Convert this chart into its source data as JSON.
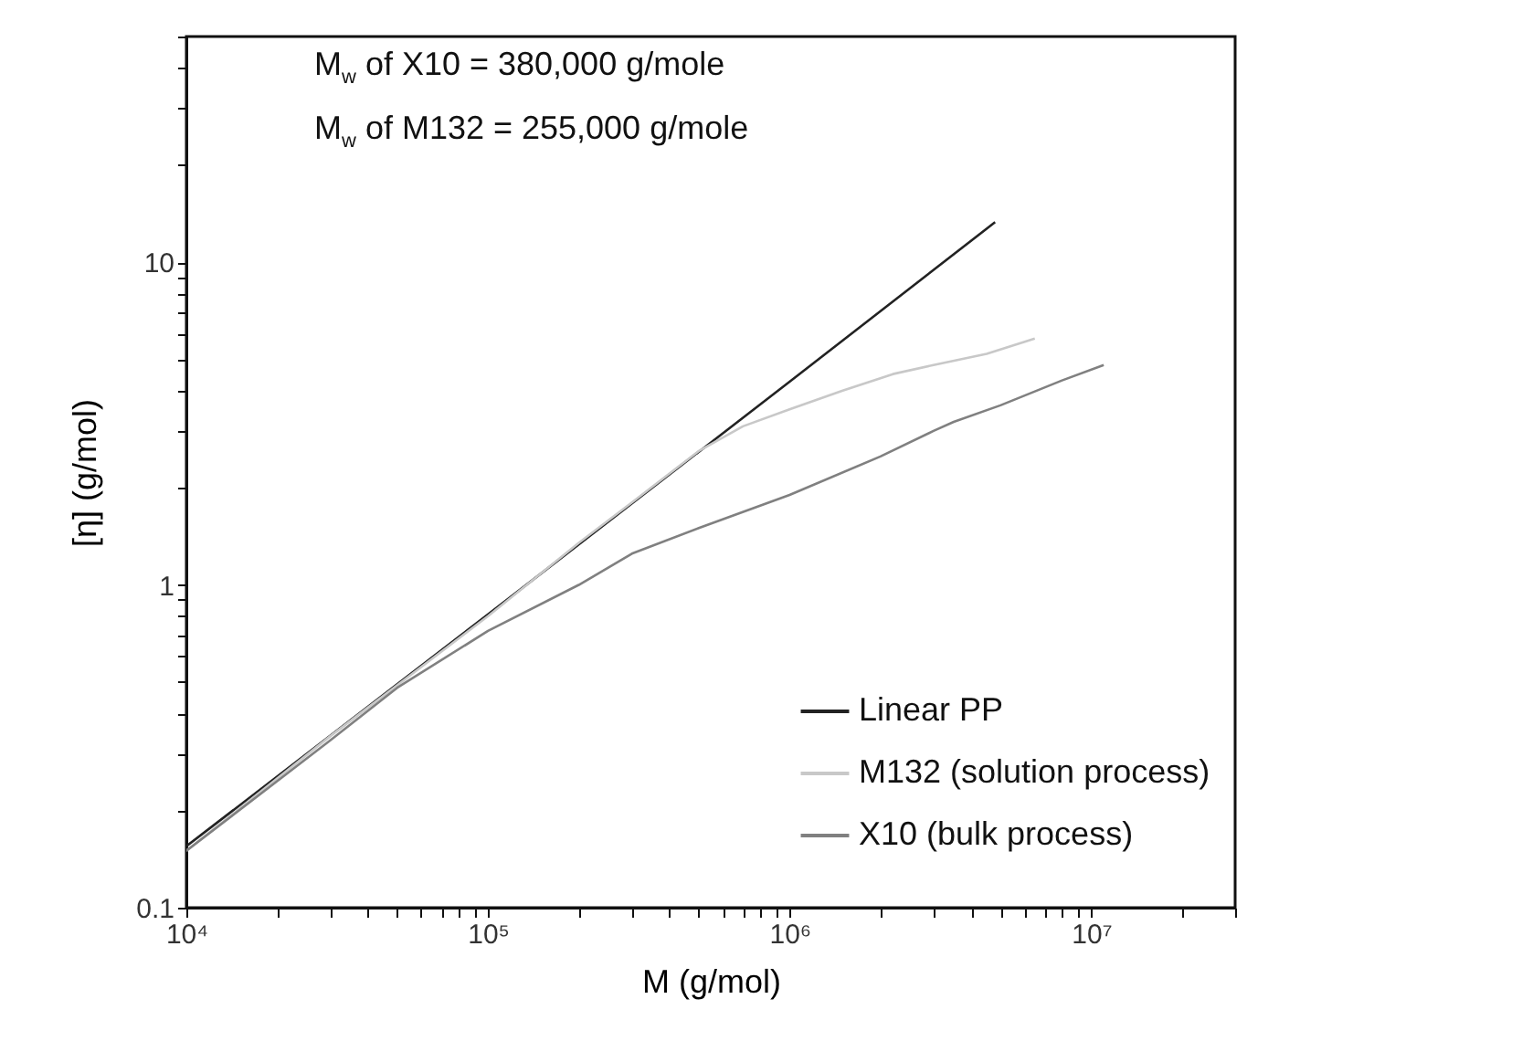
{
  "chart_data": {
    "type": "line",
    "xlabel": "M (g/mol)",
    "ylabel": "[η] (g/mol)",
    "annotations": [
      "M$_{w}$ of X10 = 380,000 g/mole",
      "M$_{w}$ of M132 = 255,000 g/mole"
    ],
    "log": "xy",
    "grid": false,
    "legend": "bottom right",
    "marker": "none",
    "line_style": "solid",
    "xlim": [
      10000,
      30000000
    ],
    "xticks": [
      {
        "value": 10000,
        "label": "10⁴"
      },
      {
        "value": 20000,
        "label": null
      },
      {
        "value": 30000,
        "label": null
      },
      {
        "value": 40000,
        "label": null
      },
      {
        "value": 50000,
        "label": null
      },
      {
        "value": 60000,
        "label": null
      },
      {
        "value": 70000,
        "label": null
      },
      {
        "value": 80000,
        "label": null
      },
      {
        "value": 90000,
        "label": null
      },
      {
        "value": 100000,
        "label": "10⁵"
      },
      {
        "value": 200000,
        "label": null
      },
      {
        "value": 300000,
        "label": null
      },
      {
        "value": 400000,
        "label": null
      },
      {
        "value": 500000,
        "label": null
      },
      {
        "value": 600000,
        "label": null
      },
      {
        "value": 700000,
        "label": null
      },
      {
        "value": 800000,
        "label": null
      },
      {
        "value": 900000,
        "label": null
      },
      {
        "value": 1000000,
        "label": "10⁶"
      },
      {
        "value": 2000000,
        "label": null
      },
      {
        "value": 3000000,
        "label": null
      },
      {
        "value": 4000000,
        "label": null
      },
      {
        "value": 5000000,
        "label": null
      },
      {
        "value": 6000000,
        "label": null
      },
      {
        "value": 7000000,
        "label": null
      },
      {
        "value": 8000000,
        "label": null
      },
      {
        "value": 9000000,
        "label": null
      },
      {
        "value": 10000000,
        "label": "10⁷"
      },
      {
        "value": 20000000,
        "label": null
      },
      {
        "value": 30000000,
        "label": null
      }
    ],
    "ylim": [
      0.1,
      50
    ],
    "yticks": [
      0.1,
      {
        "value": 0.2,
        "label": null
      },
      {
        "value": 0.3,
        "label": null
      },
      {
        "value": 0.4,
        "label": null
      },
      {
        "value": 0.5,
        "label": null
      },
      {
        "value": 0.6,
        "label": null
      },
      {
        "value": 0.7,
        "label": null
      },
      {
        "value": 0.8,
        "label": null
      },
      {
        "value": 0.9,
        "label": null
      },
      1,
      {
        "value": 2,
        "label": null
      },
      {
        "value": 3,
        "label": null
      },
      {
        "value": 4,
        "label": null
      },
      {
        "value": 5,
        "label": null
      },
      {
        "value": 6,
        "label": null
      },
      {
        "value": 7,
        "label": null
      },
      {
        "value": 8,
        "label": null
      },
      {
        "value": 9,
        "label": null
      },
      10,
      {
        "value": 20,
        "label": null
      },
      {
        "value": 30,
        "label": null
      },
      {
        "value": 40,
        "label": null
      },
      {
        "value": 50,
        "label": null
      }
    ],
    "series": [
      {
        "name": "Linear PP",
        "color": "#222222",
        "x": [
          10000,
          100000,
          1000000,
          4800000
        ],
        "values": [
          0.155,
          0.81,
          4.26,
          13.3
        ]
      },
      {
        "name": "M132 (solution process)",
        "color": "#c8c8c8",
        "x": [
          10000,
          30000,
          100000,
          200000,
          300000,
          500000,
          700000,
          1000000,
          1500000,
          2200000,
          3000000,
          4500000,
          6500000
        ],
        "values": [
          0.15,
          0.34,
          0.8,
          1.35,
          1.8,
          2.6,
          3.1,
          3.5,
          4.0,
          4.5,
          4.8,
          5.2,
          5.8
        ]
      },
      {
        "name": "X10 (bulk process)",
        "color": "#808080",
        "x": [
          10000,
          30000,
          50000,
          100000,
          200000,
          300000,
          500000,
          1000000,
          2000000,
          3000000,
          3500000,
          5000000,
          8000000,
          11000000
        ],
        "values": [
          0.15,
          0.33,
          0.48,
          0.72,
          1.0,
          1.25,
          1.5,
          1.9,
          2.5,
          3.0,
          3.2,
          3.6,
          4.3,
          4.8
        ]
      }
    ]
  }
}
